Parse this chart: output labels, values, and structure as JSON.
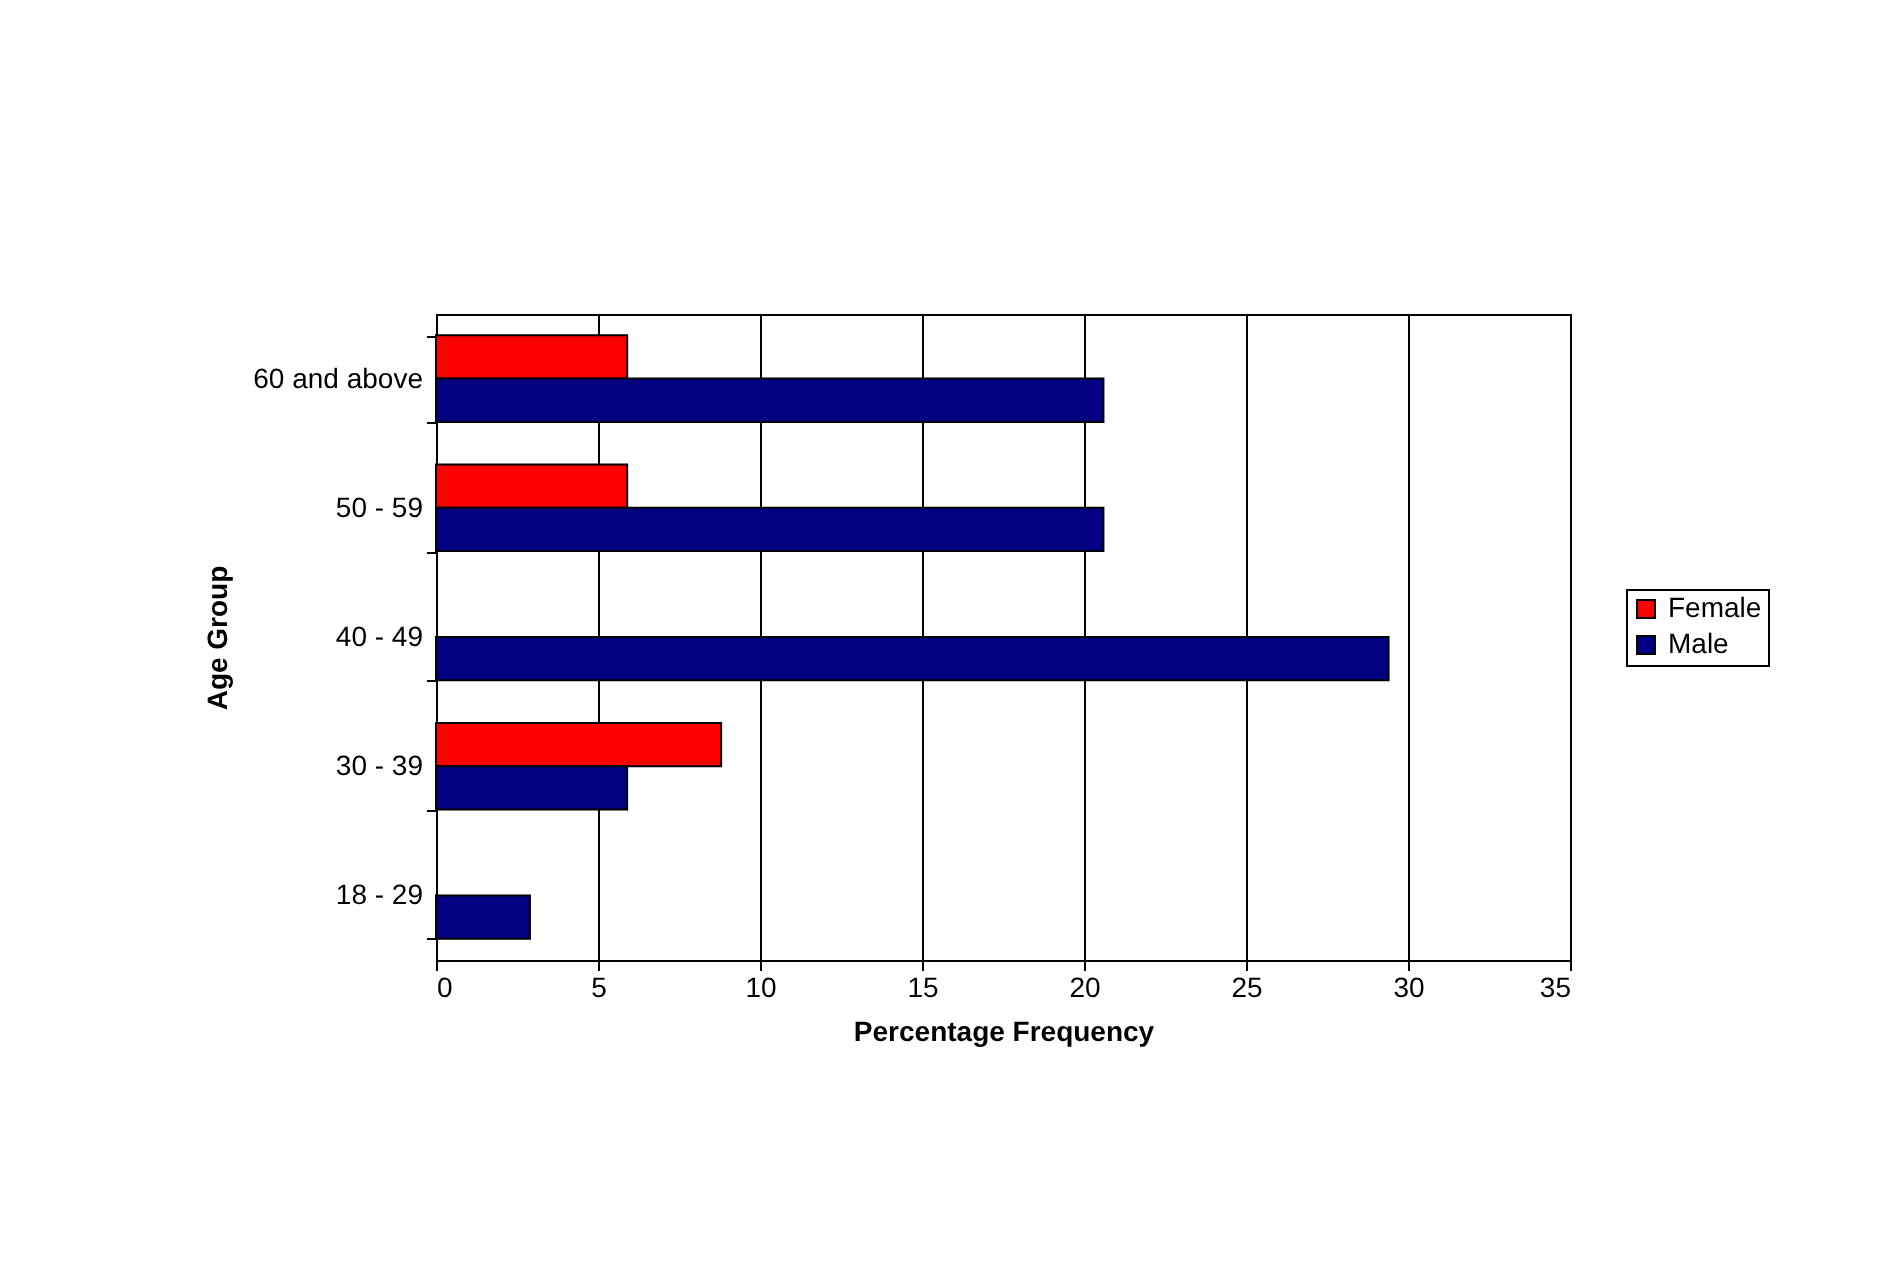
{
  "chart_data": {
    "type": "bar",
    "orientation": "horizontal",
    "xlabel": "Percentage Frequency",
    "ylabel": "Age Group",
    "categories": [
      "60 and above",
      "50 - 59",
      "40 - 49",
      "30 - 39",
      "18 - 29"
    ],
    "series": [
      {
        "name": "Female",
        "color": "#ff0000",
        "values": [
          5.9,
          5.9,
          null,
          8.8,
          null
        ]
      },
      {
        "name": "Male",
        "color": "#000080",
        "values": [
          20.6,
          20.6,
          29.4,
          5.9,
          2.9
        ]
      }
    ],
    "xlim": [
      0,
      35
    ],
    "xticks": [
      0,
      5,
      10,
      15,
      20,
      25,
      30,
      35
    ],
    "grid": "x",
    "legend": "right"
  }
}
